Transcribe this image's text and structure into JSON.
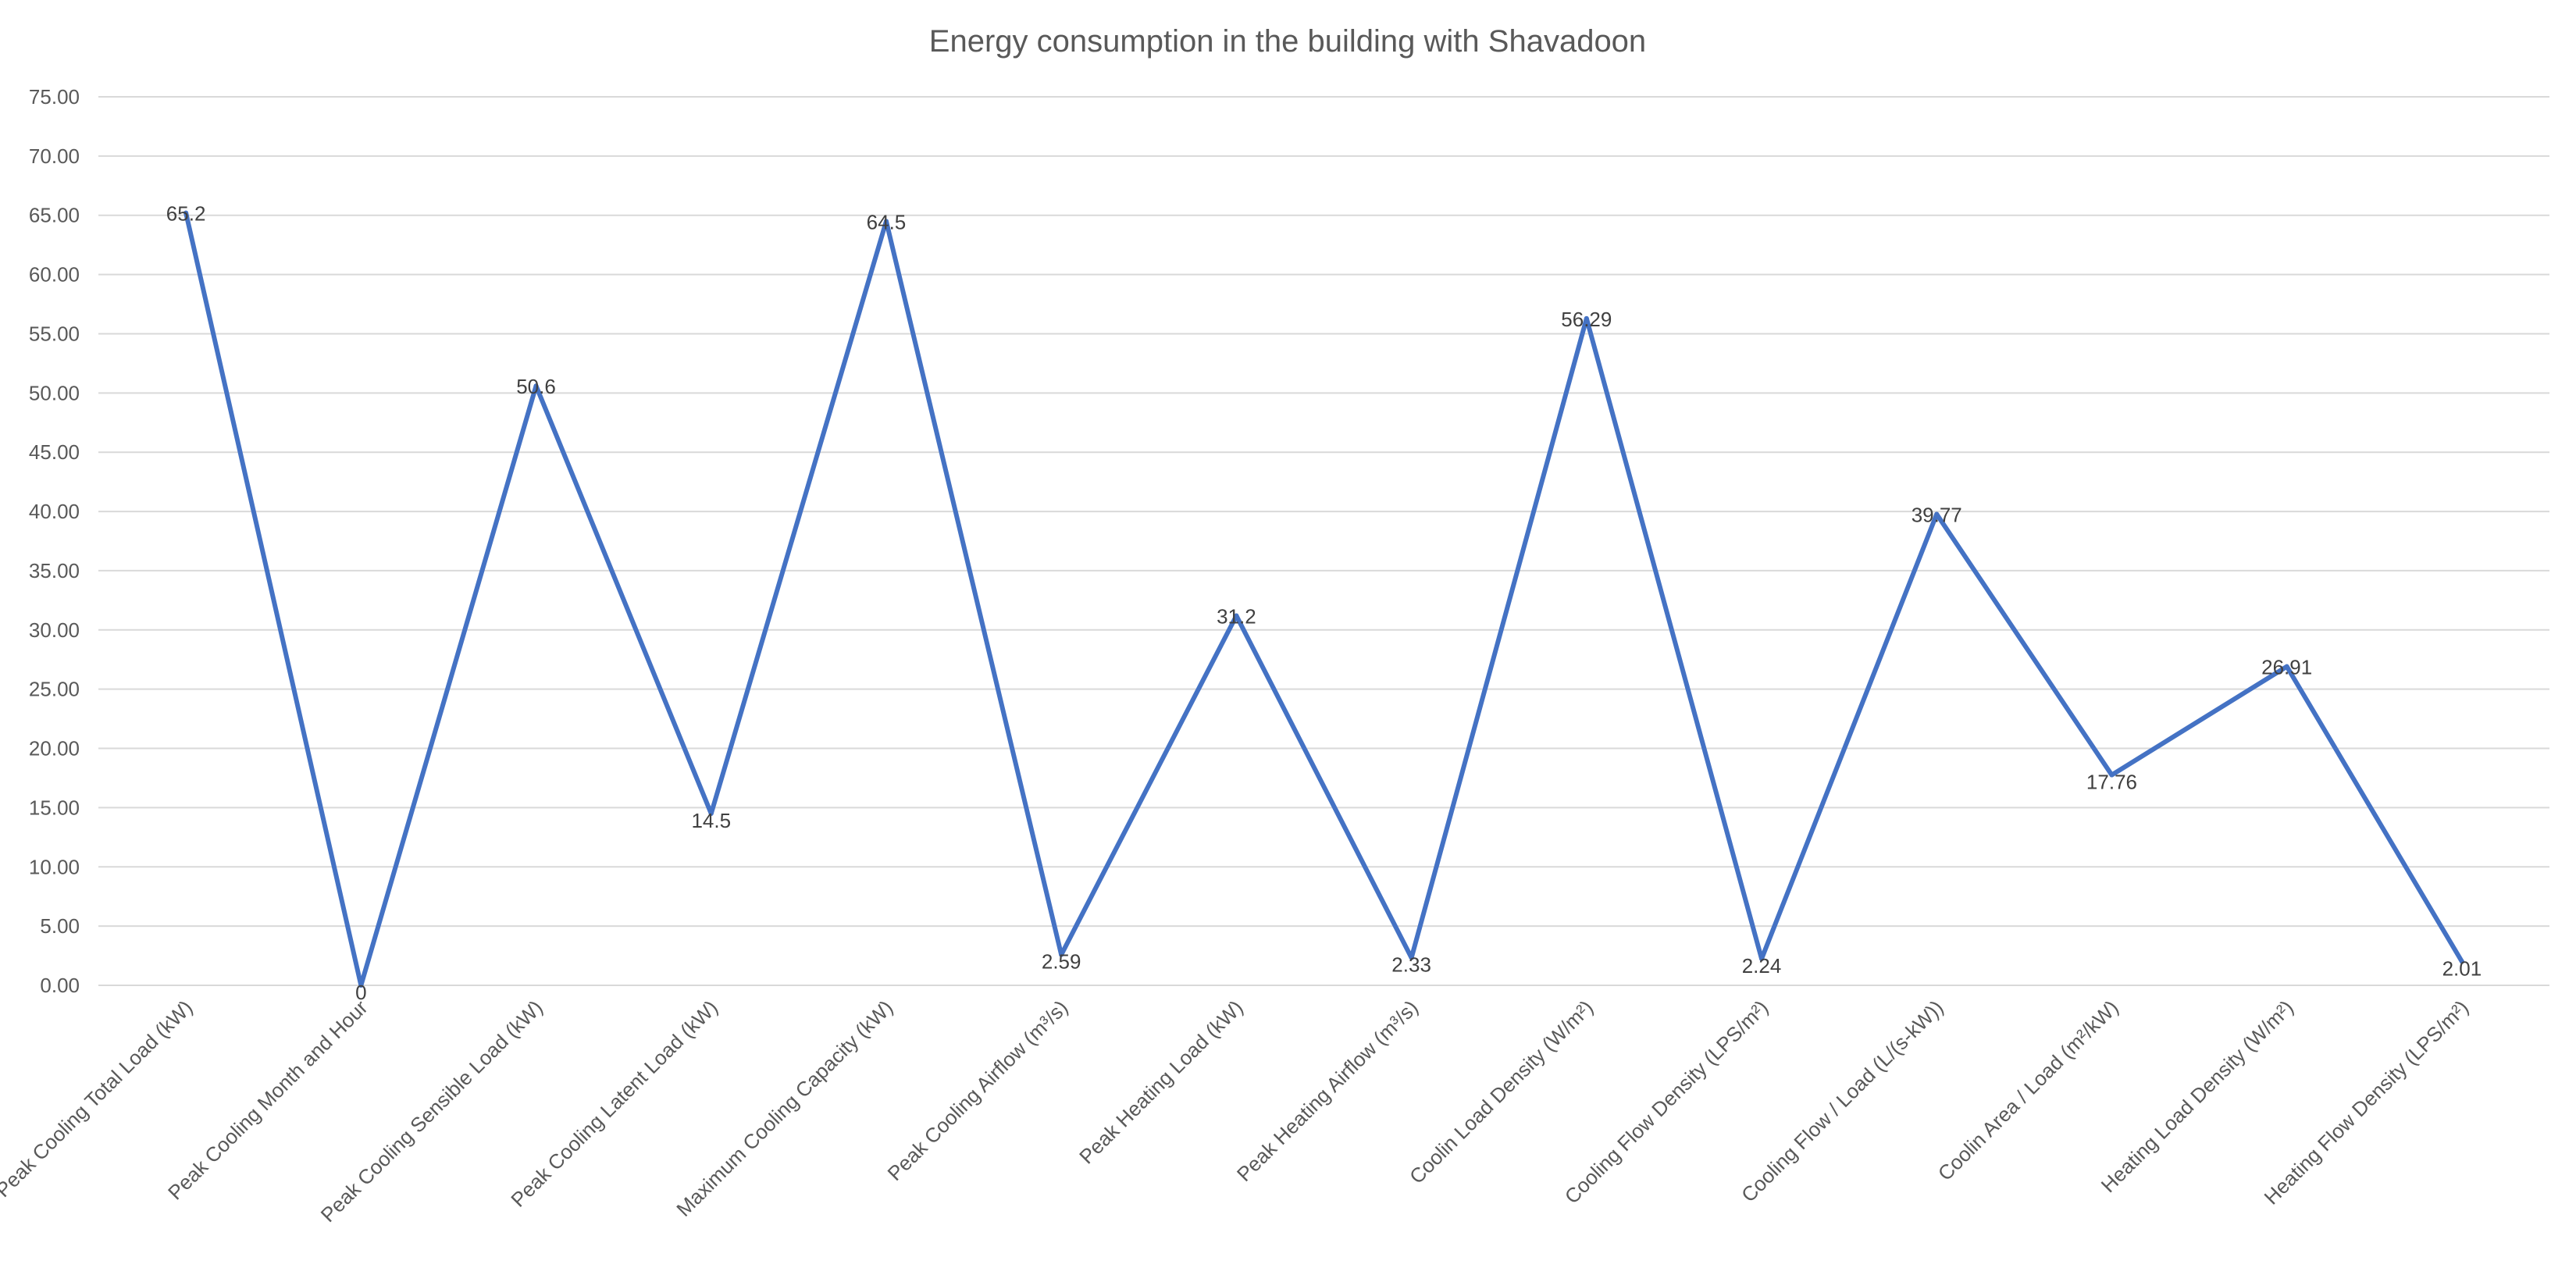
{
  "chart_data": {
    "type": "line",
    "title": "Energy consumption in the building with Shavadoon",
    "xlabel": "",
    "ylabel": "",
    "ylim": [
      0,
      75
    ],
    "ytick_step": 5,
    "ytick_labels": [
      "0.00",
      "5.00",
      "10.00",
      "15.00",
      "20.00",
      "25.00",
      "30.00",
      "35.00",
      "40.00",
      "45.00",
      "50.00",
      "55.00",
      "60.00",
      "65.00",
      "70.00",
      "75.00"
    ],
    "grid": true,
    "legend": "none",
    "categories": [
      "Peak Cooling Total Load (kW)",
      "Peak Cooling Month and Hour",
      "Peak Cooling Sensible Load (kW)",
      "Peak Cooling Latent Load (kW)",
      "Maximum Cooling Capacity (kW)",
      "Peak Cooling Airflow (m³/s)",
      "Peak Heating Load (kW)",
      "Peak Heating Airflow (m³/s)",
      "Coolin Load Density (W/m²)",
      "Cooling Flow Density (LPS/m²)",
      "Cooling Flow / Load (L/(s-kW))",
      "Coolin Area / Load (m²/kW)",
      "Heating Load Density (W/m²)",
      "Heating Flow Density (LPS/m²)"
    ],
    "series": [
      {
        "values": [
          65.2,
          0,
          50.6,
          14.5,
          64.5,
          2.59,
          31.2,
          2.33,
          56.29,
          2.24,
          39.77,
          17.76,
          26.91,
          2.01
        ],
        "data_labels": [
          "65.2",
          "0",
          "50.6",
          "14.5",
          "64.5",
          "2.59",
          "31.2",
          "2.33",
          "56.29",
          "2.24",
          "39.77",
          "17.76",
          "26.91",
          "2.01"
        ],
        "color": "#4472c4"
      }
    ],
    "label_positions": [
      "above",
      "below",
      "above",
      "below",
      "above",
      "below",
      "above",
      "below",
      "above",
      "below",
      "above",
      "below",
      "above",
      "below"
    ]
  }
}
